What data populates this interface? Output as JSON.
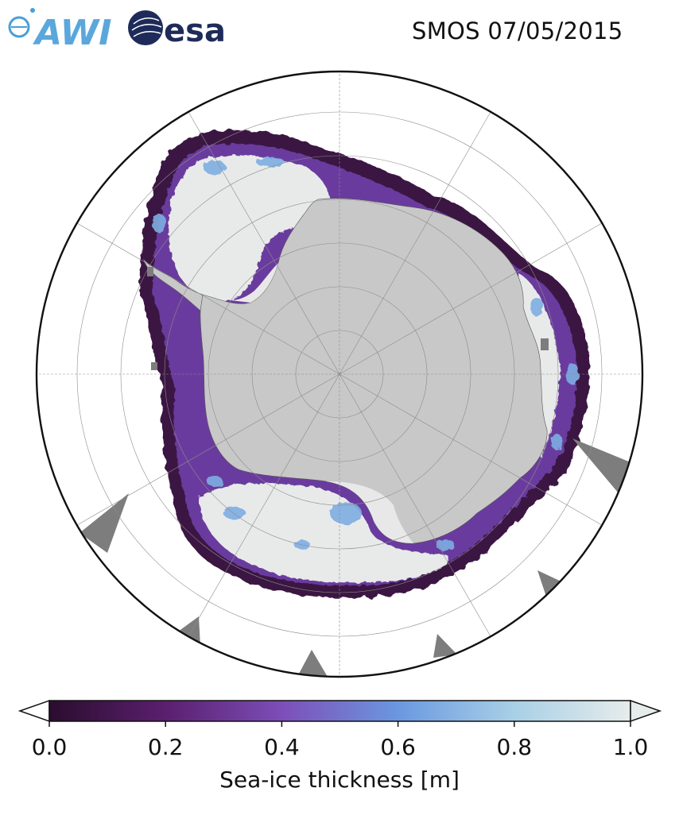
{
  "header": {
    "logo_awi": "AWI",
    "logo_esa": "esa",
    "title": "SMOS 07/05/2015"
  },
  "map": {
    "projection": "south-polar-stereographic",
    "ocean_color": "#ffffff",
    "land_color": "#c8c8c8",
    "ice_shelf_color": "#e8e8e8",
    "no_data_color": "#7d7d7d",
    "graticule_color": "#8c8c8c"
  },
  "colorbar": {
    "label": "Sea-ice thickness [m]",
    "min": 0.0,
    "max": 1.0,
    "ticks": [
      "0.0",
      "0.2",
      "0.4",
      "0.6",
      "0.8",
      "1.0"
    ],
    "tick_values": [
      0.0,
      0.2,
      0.4,
      0.6,
      0.8,
      1.0
    ],
    "extend": "both",
    "colormap_stops": [
      {
        "v": 0.0,
        "c": "#2a0d2e"
      },
      {
        "v": 0.2,
        "c": "#5a1f6e"
      },
      {
        "v": 0.4,
        "c": "#7d4eb8"
      },
      {
        "v": 0.6,
        "c": "#6a98e0"
      },
      {
        "v": 0.8,
        "c": "#a8d0e6"
      },
      {
        "v": 1.0,
        "c": "#e6eceb"
      }
    ]
  }
}
